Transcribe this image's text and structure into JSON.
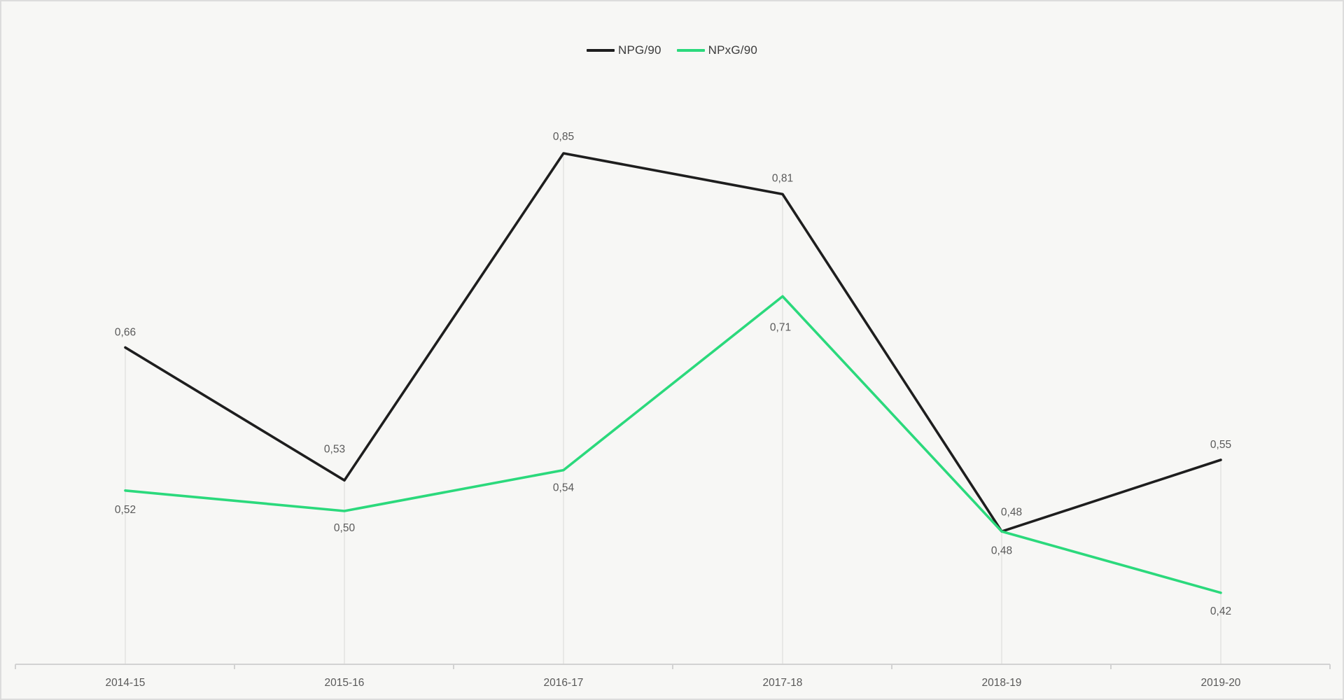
{
  "chart_data": {
    "type": "line",
    "title": "",
    "categories": [
      "2014-15",
      "2015-16",
      "2016-17",
      "2017-18",
      "2018-19",
      "2019-20"
    ],
    "series": [
      {
        "name": "NPG/90",
        "color": "#1e1e1e",
        "values": [
          0.66,
          0.53,
          0.85,
          0.81,
          0.48,
          0.55
        ],
        "labels": [
          "0,66",
          "0,53",
          "0,85",
          "0,81",
          "0,48",
          "0,55"
        ],
        "label_side": "above",
        "label_offsets": [
          [
            0,
            -21
          ],
          [
            -14,
            -44
          ],
          [
            0,
            -23
          ],
          [
            0,
            -22
          ],
          [
            14,
            -27
          ],
          [
            0,
            -21
          ]
        ]
      },
      {
        "name": "NPxG/90",
        "color": "#2bd97c",
        "values": [
          0.52,
          0.5,
          0.54,
          0.71,
          0.48,
          0.42
        ],
        "labels": [
          "0,52",
          "0,50",
          "0,54",
          "0,71",
          "0,48",
          "0,42"
        ],
        "label_side": "below",
        "label_offsets": [
          [
            0,
            28
          ],
          [
            0,
            25
          ],
          [
            0,
            26
          ],
          [
            -3,
            45
          ],
          [
            0,
            28
          ],
          [
            0,
            27
          ]
        ]
      }
    ],
    "xlabel": "",
    "ylabel": "",
    "ylim": [
      0.35,
      1.0
    ],
    "grid": "vertical-drop-lines-only",
    "legend_position": "top-center",
    "decimal_separator": ",",
    "colors": {
      "background": "#f7f7f5",
      "axis_line": "#d2d2d2",
      "drop_line": "#e4e4e2",
      "data_label_text": "#595959",
      "axis_label_text": "#595959",
      "border": "#dcdcdc"
    }
  }
}
